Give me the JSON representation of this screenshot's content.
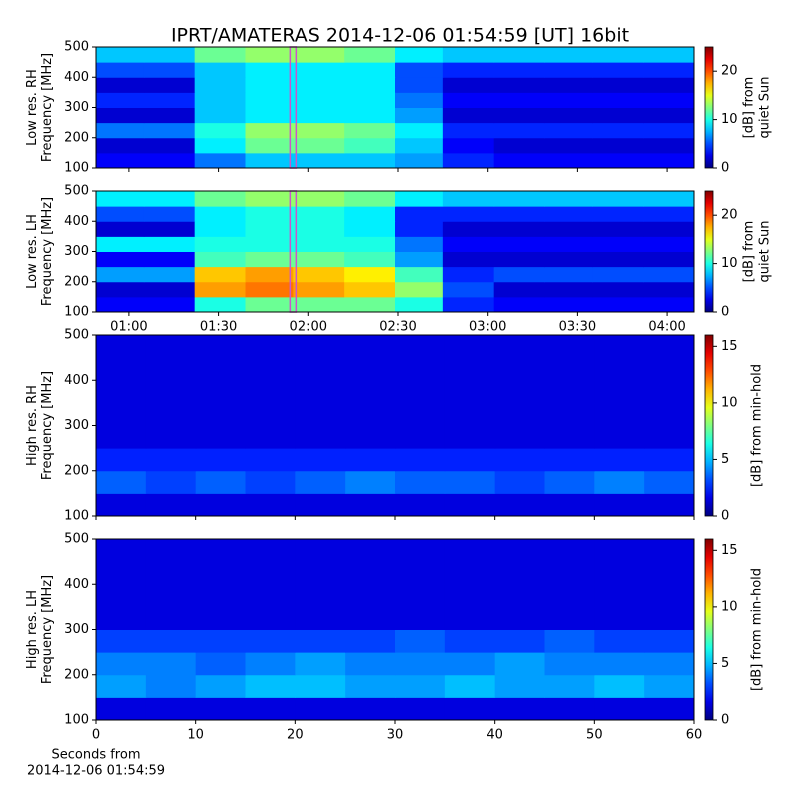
{
  "chart_data": [
    {
      "type": "heatmap",
      "title": "IPRT/AMATERAS 2014-12-06 01:54:59 [UT]   16bit",
      "ylabel": [
        "Low res. RH",
        "Frequency [MHz]"
      ],
      "colorbar_label": [
        "[dB] from",
        "quiet Sun"
      ],
      "x": [
        49,
        65,
        82,
        99,
        115,
        132,
        149,
        165,
        182,
        199,
        215,
        232,
        249
      ],
      "y": [
        100,
        150,
        200,
        250,
        300,
        350,
        400,
        450,
        500
      ],
      "values": [
        [
          3,
          3,
          6,
          8,
          8,
          8,
          7,
          4,
          3,
          3,
          3,
          3
        ],
        [
          2,
          2,
          9,
          12,
          12,
          11,
          8,
          3,
          2,
          2,
          2,
          2
        ],
        [
          6,
          6,
          10,
          13,
          13,
          12,
          9,
          4,
          4,
          4,
          4,
          4
        ],
        [
          2,
          2,
          8,
          9,
          9,
          9,
          7,
          2,
          2,
          2,
          2,
          2
        ],
        [
          4,
          4,
          8,
          9,
          9,
          9,
          6,
          3,
          3,
          3,
          3,
          3
        ],
        [
          2,
          2,
          8,
          9,
          9,
          9,
          5,
          2,
          2,
          2,
          2,
          2
        ],
        [
          5,
          5,
          8,
          9,
          9,
          9,
          5,
          4,
          4,
          4,
          4,
          4
        ],
        [
          8,
          8,
          12,
          13,
          13,
          12,
          9,
          8,
          8,
          8,
          8,
          8
        ]
      ],
      "marker": 115,
      "marker_color": "#cc55cc",
      "xlim": [
        49,
        249
      ],
      "ylim": [
        100,
        500
      ],
      "yticks": [
        100,
        200,
        300,
        400,
        500
      ],
      "clim": [
        0,
        25
      ],
      "cticks": [
        0,
        10,
        20
      ],
      "colormap": "jet"
    },
    {
      "type": "heatmap",
      "ylabel": [
        "Low res. LH",
        "Frequency [MHz]"
      ],
      "colorbar_label": [
        "[dB] from",
        "quiet Sun"
      ],
      "x": [
        49,
        65,
        82,
        99,
        115,
        132,
        149,
        165,
        182,
        199,
        215,
        232,
        249
      ],
      "y": [
        100,
        150,
        200,
        250,
        300,
        350,
        400,
        450,
        500
      ],
      "values": [
        [
          3,
          3,
          10,
          12,
          12,
          12,
          10,
          4,
          3,
          3,
          3,
          3
        ],
        [
          2,
          2,
          18,
          19,
          18,
          17,
          13,
          5,
          2,
          2,
          2,
          2
        ],
        [
          7,
          7,
          17,
          18,
          17,
          16,
          11,
          4,
          5,
          5,
          5,
          5
        ],
        [
          3,
          3,
          11,
          12,
          12,
          11,
          7,
          2,
          2,
          2,
          2,
          2
        ],
        [
          9,
          9,
          10,
          10,
          10,
          10,
          6,
          3,
          3,
          3,
          3,
          3
        ],
        [
          2,
          2,
          9,
          10,
          10,
          9,
          4,
          2,
          2,
          2,
          2,
          2
        ],
        [
          5,
          5,
          9,
          10,
          10,
          9,
          4,
          4,
          4,
          4,
          4,
          4
        ],
        [
          9,
          9,
          12,
          13,
          13,
          12,
          9,
          8,
          8,
          8,
          8,
          8
        ]
      ],
      "marker": 115,
      "marker_color": "#cc55cc",
      "xlim": [
        49,
        249
      ],
      "ylim": [
        100,
        500
      ],
      "yticks": [
        100,
        200,
        300,
        400,
        500
      ],
      "xticks": [
        {
          "value": 60,
          "label": "01:00"
        },
        {
          "value": 90,
          "label": "01:30"
        },
        {
          "value": 120,
          "label": "02:00"
        },
        {
          "value": 150,
          "label": "02:30"
        },
        {
          "value": 180,
          "label": "03:00"
        },
        {
          "value": 210,
          "label": "03:30"
        },
        {
          "value": 240,
          "label": "04:00"
        }
      ],
      "clim": [
        0,
        25
      ],
      "cticks": [
        0,
        10,
        20
      ],
      "colormap": "jet"
    },
    {
      "type": "heatmap",
      "ylabel": [
        "High res. RH",
        "Frequency [MHz]"
      ],
      "colorbar_label": [
        "[dB] from min-hold"
      ],
      "x": [
        0,
        5,
        10,
        15,
        20,
        25,
        30,
        35,
        40,
        45,
        50,
        55,
        60
      ],
      "y": [
        100,
        150,
        200,
        250,
        300,
        350,
        400,
        450,
        500
      ],
      "values": [
        [
          1.5,
          1.5,
          1.5,
          1.5,
          1.5,
          1.5,
          1.5,
          1.5,
          1.5,
          1.5,
          1.5,
          1.5
        ],
        [
          3.5,
          3,
          3.5,
          3,
          3.5,
          4,
          3.5,
          3.5,
          3,
          3.5,
          4,
          3.5
        ],
        [
          2.5,
          2.5,
          2.5,
          2.5,
          2.5,
          2.5,
          2.5,
          2.5,
          2.5,
          2.5,
          2.5,
          2.5
        ],
        [
          1.5,
          1.5,
          1.5,
          1.5,
          1.5,
          1.5,
          1.5,
          1.5,
          1.5,
          1.5,
          1.5,
          1.5
        ],
        [
          1.5,
          1.5,
          1.5,
          1.5,
          1.5,
          1.5,
          1.5,
          1.5,
          1.5,
          1.5,
          1.5,
          1.5
        ],
        [
          1.5,
          1.5,
          1.5,
          1.5,
          1.5,
          1.5,
          1.5,
          1.5,
          1.5,
          1.5,
          1.5,
          1.5
        ],
        [
          1.5,
          1.5,
          1.5,
          1.5,
          1.5,
          1.5,
          1.5,
          1.5,
          1.5,
          1.5,
          1.5,
          1.5
        ],
        [
          1.5,
          1.5,
          1.5,
          1.5,
          1.5,
          1.5,
          1.5,
          1.5,
          1.5,
          1.5,
          1.5,
          1.5
        ]
      ],
      "xlim": [
        0,
        60
      ],
      "ylim": [
        100,
        500
      ],
      "yticks": [
        100,
        200,
        300,
        400,
        500
      ],
      "clim": [
        0,
        16
      ],
      "cticks": [
        0,
        5,
        10,
        15
      ],
      "colormap": "jet"
    },
    {
      "type": "heatmap",
      "ylabel": [
        "High res. LH",
        "Frequency [MHz]"
      ],
      "colorbar_label": [
        "[dB] from min-hold"
      ],
      "xlabel": [
        "Seconds from",
        "2014-12-06 01:54:59"
      ],
      "x": [
        0,
        5,
        10,
        15,
        20,
        25,
        30,
        35,
        40,
        45,
        50,
        55,
        60
      ],
      "y": [
        100,
        150,
        200,
        250,
        300,
        350,
        400,
        450,
        500
      ],
      "values": [
        [
          1.5,
          1.5,
          1.5,
          1.5,
          1.5,
          1.5,
          1.5,
          1.5,
          1.5,
          1.5,
          1.5,
          1.5
        ],
        [
          4.5,
          4,
          4.5,
          5,
          5,
          4.5,
          4.5,
          5,
          4.5,
          4.5,
          5,
          4.5
        ],
        [
          4,
          4,
          3.5,
          4,
          4.5,
          4,
          4,
          4,
          4.5,
          4,
          4,
          4
        ],
        [
          3,
          3,
          3,
          3,
          3,
          3,
          3.5,
          3,
          3,
          3.5,
          3,
          3
        ],
        [
          1.5,
          1.5,
          1.5,
          1.5,
          1.5,
          1.5,
          1.5,
          1.5,
          1.5,
          1.5,
          1.5,
          1.5
        ],
        [
          1.5,
          1.5,
          1.5,
          1.5,
          1.5,
          1.5,
          1.5,
          1.5,
          1.5,
          1.5,
          1.5,
          1.5
        ],
        [
          1.5,
          1.5,
          1.5,
          1.5,
          1.5,
          1.5,
          1.5,
          1.5,
          1.5,
          1.5,
          1.5,
          1.5
        ],
        [
          1.5,
          1.5,
          1.5,
          1.5,
          1.5,
          1.5,
          1.5,
          1.5,
          1.5,
          1.5,
          1.5,
          1.5
        ]
      ],
      "xlim": [
        0,
        60
      ],
      "ylim": [
        100,
        500
      ],
      "yticks": [
        100,
        200,
        300,
        400,
        500
      ],
      "xticks": [
        0,
        10,
        20,
        30,
        40,
        50,
        60
      ],
      "clim": [
        0,
        16
      ],
      "cticks": [
        0,
        5,
        10,
        15
      ],
      "colormap": "jet"
    }
  ]
}
